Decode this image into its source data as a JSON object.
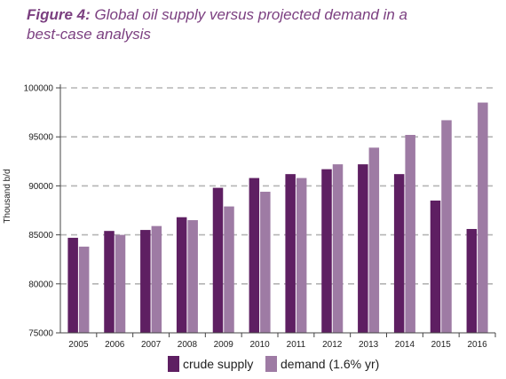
{
  "figure": {
    "label": "Figure 4:",
    "caption": " Global oil supply versus projected demand in a best-case analysis"
  },
  "colors": {
    "title": "#7b3f80",
    "crude_supply": "#5e1f62",
    "demand": "#9e7ba4",
    "grid": "#b5b5b5",
    "axis": "#444444"
  },
  "chart_data": {
    "type": "bar",
    "title": "Global oil supply versus projected demand in a best-case analysis",
    "xlabel": "",
    "ylabel": "Thousand b/d",
    "ylim": [
      75000,
      100000
    ],
    "yticks": [
      75000,
      80000,
      85000,
      90000,
      95000,
      100000
    ],
    "categories": [
      "2005",
      "2006",
      "2007",
      "2008",
      "2009",
      "2010",
      "2011",
      "2012",
      "2013",
      "2014",
      "2015",
      "2016"
    ],
    "series": [
      {
        "name": "crude supply",
        "color": "#5e1f62",
        "values": [
          84700,
          85400,
          85500,
          86800,
          89800,
          90800,
          91200,
          91700,
          92200,
          91200,
          88500,
          85600
        ]
      },
      {
        "name": "demand (1.6% yr)",
        "color": "#9e7ba4",
        "values": [
          83800,
          85000,
          85900,
          86500,
          87900,
          89400,
          90800,
          92200,
          93900,
          95200,
          96700,
          98500
        ]
      }
    ],
    "grid": "horizontal dashed",
    "legend": "bottom"
  }
}
